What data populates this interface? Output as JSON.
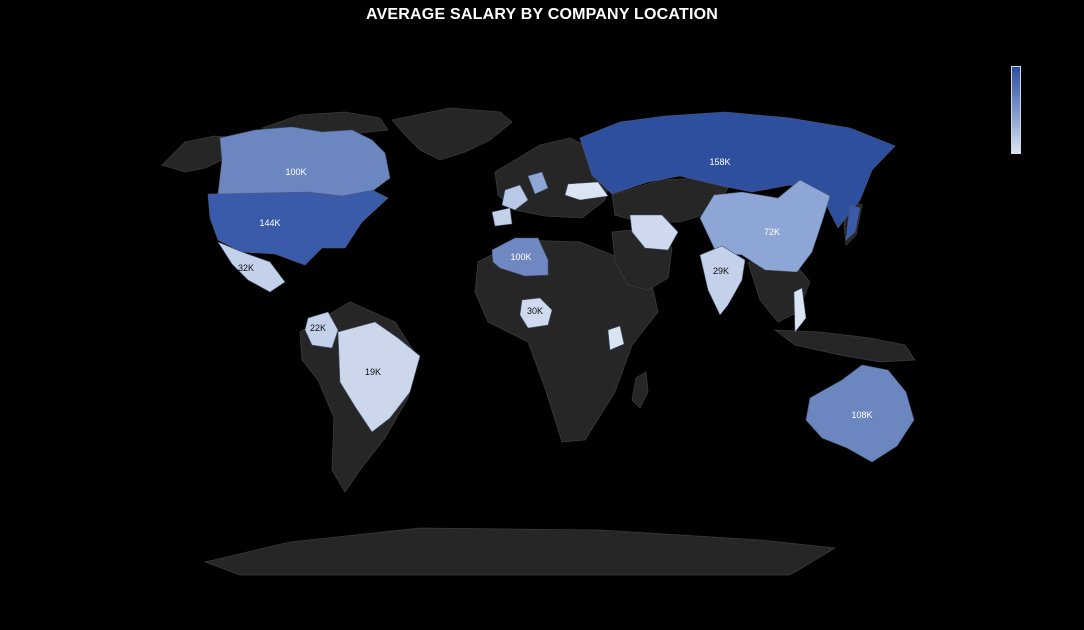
{
  "title": "AVERAGE SALARY BY COMPANY LOCATION",
  "colors": {
    "background": "#000000",
    "land_no_data": "#262626",
    "border": "#3a3a3a",
    "scale_high": "#2e4f9e",
    "scale_low": "#dbe4f3"
  },
  "legend": {
    "placement": "top-right",
    "type": "color-scale"
  },
  "chart_data": {
    "type": "choropleth",
    "title": "AVERAGE SALARY BY COMPANY LOCATION",
    "series": [
      {
        "region": "Russia",
        "value_k": 158,
        "label": "158K"
      },
      {
        "region": "United States",
        "value_k": 144,
        "label": "144K"
      },
      {
        "region": "Australia",
        "value_k": 108,
        "label": "108K"
      },
      {
        "region": "Canada",
        "value_k": 100,
        "label": "100K"
      },
      {
        "region": "Algeria",
        "value_k": 100,
        "label": "100K"
      },
      {
        "region": "China",
        "value_k": 72,
        "label": "72K"
      },
      {
        "region": "Mexico",
        "value_k": 32,
        "label": "32K"
      },
      {
        "region": "Nigeria",
        "value_k": 30,
        "label": "30K"
      },
      {
        "region": "India",
        "value_k": 29,
        "label": "29K"
      },
      {
        "region": "Colombia",
        "value_k": 22,
        "label": "22K"
      },
      {
        "region": "Brazil",
        "value_k": 19,
        "label": "19K"
      }
    ]
  }
}
